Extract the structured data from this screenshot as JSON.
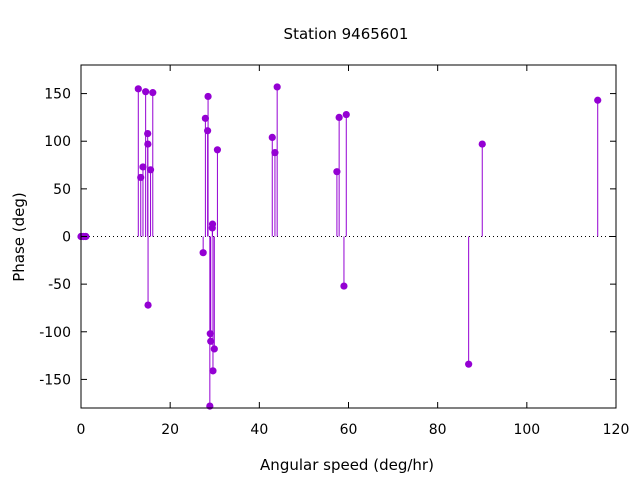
{
  "chart_data": {
    "type": "scatter",
    "style": "impulses-with-points",
    "title": "Station 9465601",
    "xlabel": "Angular speed (deg/hr)",
    "ylabel": "Phase (deg)",
    "xlim": [
      0,
      120
    ],
    "ylim": [
      -180,
      180
    ],
    "xticks": [
      0,
      20,
      40,
      60,
      80,
      100,
      120
    ],
    "yticks": [
      -150,
      -100,
      -50,
      0,
      50,
      100,
      150
    ],
    "grid": false,
    "zero_line": true,
    "color": "#9400d3",
    "points": [
      {
        "x": 0.0,
        "y": 0
      },
      {
        "x": 0.04,
        "y": 0
      },
      {
        "x": 0.08,
        "y": 0
      },
      {
        "x": 0.5,
        "y": 0
      },
      {
        "x": 0.55,
        "y": 0
      },
      {
        "x": 1.0,
        "y": 0
      },
      {
        "x": 1.1,
        "y": 0
      },
      {
        "x": 12.85,
        "y": 155
      },
      {
        "x": 13.4,
        "y": 62
      },
      {
        "x": 13.9,
        "y": 73
      },
      {
        "x": 14.5,
        "y": 152
      },
      {
        "x": 14.96,
        "y": 108
      },
      {
        "x": 15.0,
        "y": 97
      },
      {
        "x": 15.04,
        "y": -72
      },
      {
        "x": 15.6,
        "y": 70
      },
      {
        "x": 16.1,
        "y": 151
      },
      {
        "x": 27.4,
        "y": -17
      },
      {
        "x": 27.9,
        "y": 124
      },
      {
        "x": 28.4,
        "y": 111
      },
      {
        "x": 28.5,
        "y": 147
      },
      {
        "x": 28.9,
        "y": -178
      },
      {
        "x": 29.0,
        "y": -102
      },
      {
        "x": 29.1,
        "y": -110
      },
      {
        "x": 29.45,
        "y": 9
      },
      {
        "x": 29.5,
        "y": 13
      },
      {
        "x": 29.6,
        "y": -141
      },
      {
        "x": 29.9,
        "y": -118
      },
      {
        "x": 30.6,
        "y": 91
      },
      {
        "x": 42.9,
        "y": 104
      },
      {
        "x": 43.5,
        "y": 88
      },
      {
        "x": 44.0,
        "y": 157
      },
      {
        "x": 57.4,
        "y": 68
      },
      {
        "x": 57.9,
        "y": 125
      },
      {
        "x": 58.98,
        "y": -52
      },
      {
        "x": 59.5,
        "y": 128
      },
      {
        "x": 86.95,
        "y": -134
      },
      {
        "x": 90.0,
        "y": 97
      },
      {
        "x": 115.9,
        "y": 143
      }
    ]
  }
}
